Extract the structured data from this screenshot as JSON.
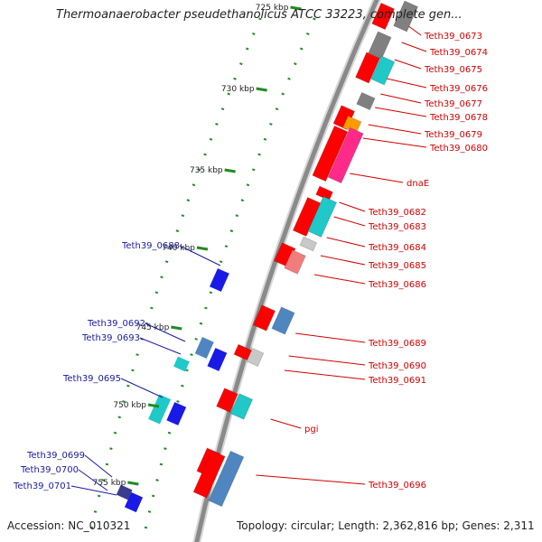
{
  "title": "Thermoanaerobacter pseudethanolicus ATCC 33223, complete gen...",
  "footer": {
    "accession": "Accession: NC_010321",
    "topology": "Topology: circular; Length: 2,362,816 bp; Genes: 2,311"
  },
  "colors": {
    "backbone": "#8a8a8a",
    "red": "#ff0000",
    "gray": "#808080",
    "lightgray": "#c8c8c8",
    "cyan": "#20c8c8",
    "orange": "#ff9a00",
    "pink": "#ff2a8a",
    "steelblue": "#4f86c0",
    "salmon": "#f07c7c",
    "blue": "#1a1ae6",
    "navy": "#3c3c8c",
    "tick": "#228b22",
    "label_right": "#d00000",
    "label_left": "#1a1aa0"
  },
  "ticks": [
    "725 kbp",
    "730 kbp",
    "735 kbp",
    "740 kbp",
    "745 kbp",
    "750 kbp",
    "755 kbp"
  ],
  "genes_right": [
    "Teth39_0673",
    "Teth39_0674",
    "Teth39_0675",
    "Teth39_0676",
    "Teth39_0677",
    "Teth39_0678",
    "Teth39_0679",
    "Teth39_0680",
    "dnaE",
    "Teth39_0682",
    "Teth39_0683",
    "Teth39_0684",
    "Teth39_0685",
    "Teth39_0686",
    "Teth39_0689",
    "Teth39_0690",
    "Teth39_0691",
    "pgi",
    "Teth39_0696"
  ],
  "genes_left": [
    "Teth39_0688",
    "Teth39_0692",
    "Teth39_0693",
    "Teth39_0695",
    "Teth39_0699",
    "Teth39_0700",
    "Teth39_0701"
  ]
}
